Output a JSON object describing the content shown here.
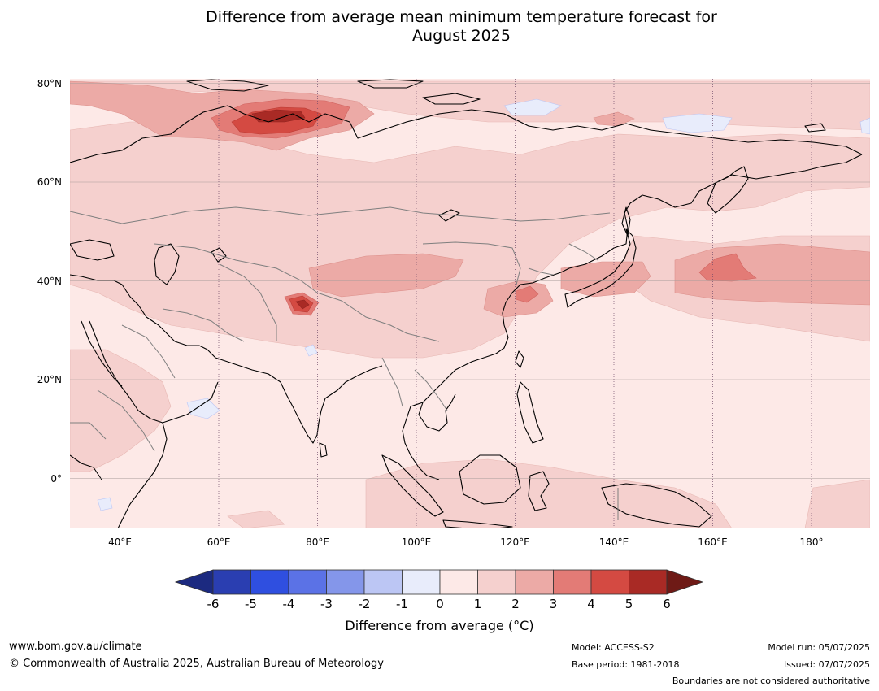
{
  "title_line1": "Difference from average mean minimum temperature forecast for",
  "title_line2": "August 2025",
  "map": {
    "latitude_labels": [
      "80°N",
      "60°N",
      "40°N",
      "20°N",
      "0°"
    ],
    "longitude_labels": [
      "40°E",
      "60°E",
      "80°E",
      "100°E",
      "120°E",
      "140°E",
      "160°E",
      "180°"
    ],
    "extent": {
      "lon_min": 30,
      "lon_max": 192,
      "lat_min": -10,
      "lat_max": 81
    }
  },
  "colorbar": {
    "title": "Difference from average (°C)",
    "tick_labels": [
      "-6",
      "-5",
      "-4",
      "-3",
      "-2",
      "-1",
      "0",
      "1",
      "2",
      "3",
      "4",
      "5",
      "6"
    ],
    "colors": [
      "#1c2a80",
      "#2a3eb1",
      "#2f4fe0",
      "#5b72e6",
      "#8496ea",
      "#bcc6f4",
      "#e8ecfb",
      "#fde9e7",
      "#f5d0ce",
      "#ecaaa6",
      "#e37b76",
      "#d44a42",
      "#a92a25",
      "#6e1a16"
    ]
  },
  "footer": {
    "website": "www.bom.gov.au/climate",
    "copyright": "© Commonwealth of Australia 2025, Australian Bureau of Meteorology",
    "model": "Model: ACCESS-S2",
    "base_period": "Base period: 1981-2018",
    "model_run": "Model run: 05/07/2025",
    "issued": "Issued: 07/07/2025",
    "boundaries": "Boundaries are not considered authoritative"
  }
}
